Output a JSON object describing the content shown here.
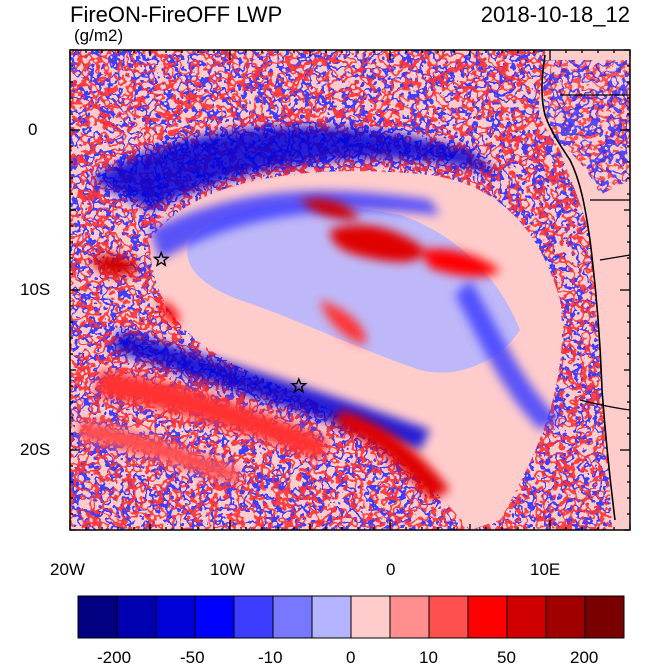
{
  "header": {
    "title": "FireON-FireOFF LWP",
    "units": "(g/m2)",
    "date": "2018-10-18_12"
  },
  "map": {
    "lat_ticks": [
      "0",
      "10S",
      "20S"
    ],
    "lon_ticks": [
      "20W",
      "10W",
      "0",
      "10E"
    ],
    "lat_range": [
      -25,
      5
    ],
    "lon_range": [
      -20,
      15
    ],
    "markers": [
      {
        "name": "star-1",
        "lon": -14.3,
        "lat": -8.1
      },
      {
        "name": "star-2",
        "lon": -5.7,
        "lat": -16.0
      }
    ]
  },
  "colorbar": {
    "colors": [
      "#000080",
      "#0000b0",
      "#0000d8",
      "#0000ff",
      "#3d3dff",
      "#7878ff",
      "#b4b4ff",
      "#ffcccc",
      "#ff8f8f",
      "#ff5050",
      "#ff0000",
      "#d00000",
      "#a00000",
      "#780000"
    ],
    "labels": [
      "-200",
      "-50",
      "-10",
      "0",
      "10",
      "50",
      "200"
    ]
  }
}
